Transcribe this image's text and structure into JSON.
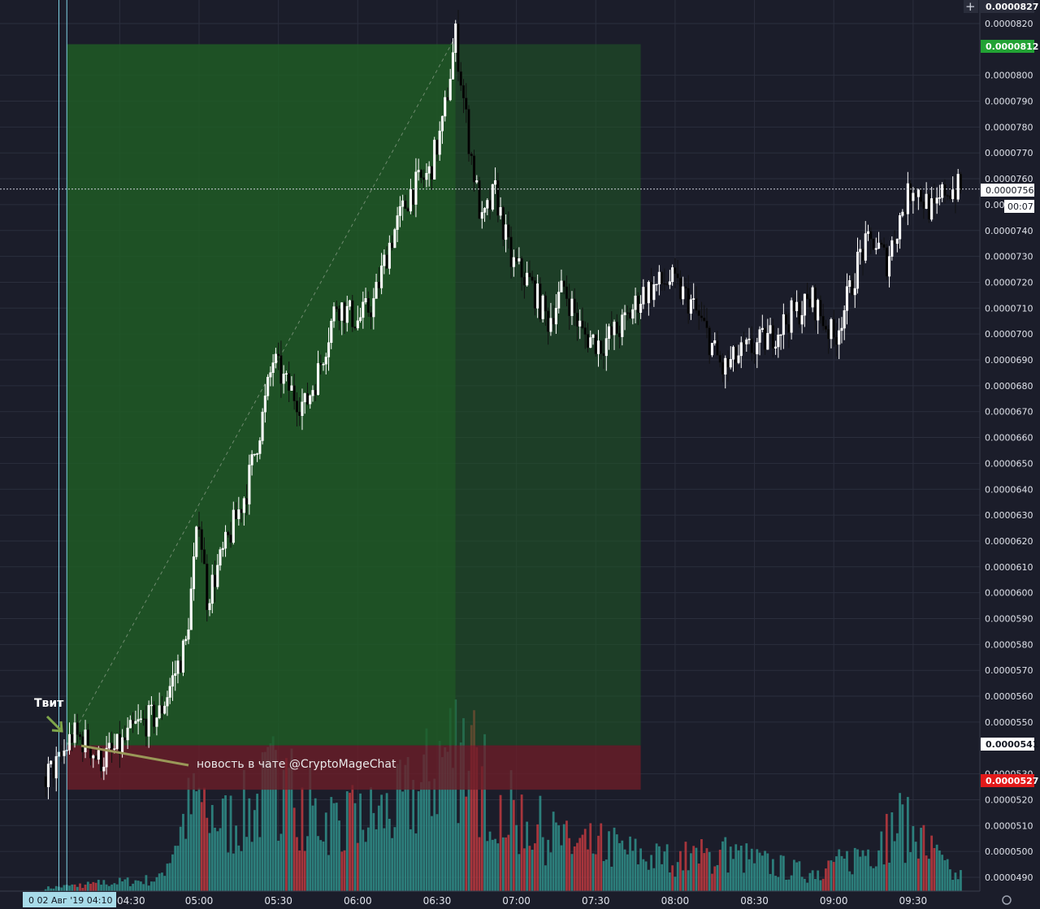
{
  "colors": {
    "background": "#1b1d2a",
    "grid": "#2b2e3d",
    "candle_up": "#ffffff",
    "candle_down": "#000000",
    "volume_up": "#2f8f8a",
    "volume_down": "#c0393f",
    "profit_zone": "#1f5a24",
    "loss_zone": "#6b1e28",
    "target_badge": "#22a234",
    "stop_badge": "#e21a1a",
    "entry_badge": "#ffffff",
    "marker_line": "#7fd3e6",
    "note_arrow": "#7fa64a",
    "note_line": "#9a9858"
  },
  "chart_data": {
    "type": "candlestick",
    "title": "",
    "xlabel": "",
    "ylabel": "",
    "ylim": [
      4.87e-05,
      8.28e-05
    ],
    "grid": true,
    "x_range": [
      "04:02",
      "09:48"
    ],
    "x_ticks": [
      "04:30",
      "05:00",
      "05:30",
      "06:00",
      "06:30",
      "07:00",
      "07:30",
      "08:00",
      "08:30",
      "09:00",
      "09:30"
    ],
    "y_ticks": [
      "0.0000490",
      "0.0000500",
      "0.0000510",
      "0.0000520",
      "0.0000530",
      "0.0000550",
      "0.0000560",
      "0.0000570",
      "0.0000580",
      "0.0000590",
      "0.0000600",
      "0.0000610",
      "0.0000620",
      "0.0000630",
      "0.0000640",
      "0.0000650",
      "0.0000660",
      "0.0000670",
      "0.0000680",
      "0.0000690",
      "0.0000700",
      "0.0000710",
      "0.0000720",
      "0.0000730",
      "0.0000740",
      "0.0000750",
      "0.0000760",
      "0.0000770",
      "0.0000780",
      "0.0000790",
      "0.0000800",
      "0.0000820"
    ],
    "price_path": [
      {
        "t": "04:02",
        "p": 5.29e-05
      },
      {
        "t": "04:07",
        "p": 5.34e-05
      },
      {
        "t": "04:12",
        "p": 5.45e-05
      },
      {
        "t": "04:18",
        "p": 5.42e-05
      },
      {
        "t": "04:22",
        "p": 5.35e-05
      },
      {
        "t": "04:30",
        "p": 5.4e-05
      },
      {
        "t": "04:36",
        "p": 5.48e-05
      },
      {
        "t": "04:45",
        "p": 5.53e-05
      },
      {
        "t": "04:55",
        "p": 5.8e-05
      },
      {
        "t": "05:00",
        "p": 6.3e-05
      },
      {
        "t": "05:03",
        "p": 5.98e-05
      },
      {
        "t": "05:08",
        "p": 6.12e-05
      },
      {
        "t": "05:18",
        "p": 6.4e-05
      },
      {
        "t": "05:24",
        "p": 6.68e-05
      },
      {
        "t": "05:28",
        "p": 6.9e-05
      },
      {
        "t": "05:33",
        "p": 6.8e-05
      },
      {
        "t": "05:40",
        "p": 6.72e-05
      },
      {
        "t": "05:45",
        "p": 6.85e-05
      },
      {
        "t": "05:52",
        "p": 7.12e-05
      },
      {
        "t": "06:00",
        "p": 7.05e-05
      },
      {
        "t": "06:06",
        "p": 7.12e-05
      },
      {
        "t": "06:12",
        "p": 7.35e-05
      },
      {
        "t": "06:20",
        "p": 7.55e-05
      },
      {
        "t": "06:27",
        "p": 7.62e-05
      },
      {
        "t": "06:32",
        "p": 7.8e-05
      },
      {
        "t": "06:37",
        "p": 8.15e-05
      },
      {
        "t": "06:42",
        "p": 7.75e-05
      },
      {
        "t": "06:47",
        "p": 7.42e-05
      },
      {
        "t": "06:52",
        "p": 7.55e-05
      },
      {
        "t": "06:58",
        "p": 7.28e-05
      },
      {
        "t": "07:05",
        "p": 7.2e-05
      },
      {
        "t": "07:12",
        "p": 7.05e-05
      },
      {
        "t": "07:18",
        "p": 7.18e-05
      },
      {
        "t": "07:25",
        "p": 7e-05
      },
      {
        "t": "07:32",
        "p": 6.96e-05
      },
      {
        "t": "07:40",
        "p": 7.03e-05
      },
      {
        "t": "07:48",
        "p": 7.16e-05
      },
      {
        "t": "07:58",
        "p": 7.21e-05
      },
      {
        "t": "08:06",
        "p": 7.12e-05
      },
      {
        "t": "08:12",
        "p": 7e-05
      },
      {
        "t": "08:18",
        "p": 6.86e-05
      },
      {
        "t": "08:25",
        "p": 6.92e-05
      },
      {
        "t": "08:35",
        "p": 6.98e-05
      },
      {
        "t": "08:45",
        "p": 7.08e-05
      },
      {
        "t": "08:52",
        "p": 7.13e-05
      },
      {
        "t": "09:00",
        "p": 6.98e-05
      },
      {
        "t": "09:06",
        "p": 7.16e-05
      },
      {
        "t": "09:10",
        "p": 7.31e-05
      },
      {
        "t": "09:15",
        "p": 7.36e-05
      },
      {
        "t": "09:20",
        "p": 7.28e-05
      },
      {
        "t": "09:26",
        "p": 7.48e-05
      },
      {
        "t": "09:30",
        "p": 7.58e-05
      },
      {
        "t": "09:34",
        "p": 7.52e-05
      },
      {
        "t": "09:38",
        "p": 7.46e-05
      },
      {
        "t": "09:42",
        "p": 7.56e-05
      }
    ],
    "volume_path": [
      {
        "t": "04:02",
        "v": 0.02
      },
      {
        "t": "04:20",
        "v": 0.05
      },
      {
        "t": "04:30",
        "v": 0.06
      },
      {
        "t": "04:45",
        "v": 0.08
      },
      {
        "t": "04:55",
        "v": 0.5
      },
      {
        "t": "05:00",
        "v": 0.6
      },
      {
        "t": "05:10",
        "v": 0.45
      },
      {
        "t": "05:20",
        "v": 0.55
      },
      {
        "t": "05:30",
        "v": 0.75
      },
      {
        "t": "05:45",
        "v": 0.5
      },
      {
        "t": "06:00",
        "v": 0.45
      },
      {
        "t": "06:15",
        "v": 0.55
      },
      {
        "t": "06:25",
        "v": 0.7
      },
      {
        "t": "06:37",
        "v": 1.0
      },
      {
        "t": "06:45",
        "v": 0.8
      },
      {
        "t": "06:55",
        "v": 0.55
      },
      {
        "t": "07:05",
        "v": 0.45
      },
      {
        "t": "07:20",
        "v": 0.3
      },
      {
        "t": "07:35",
        "v": 0.3
      },
      {
        "t": "07:50",
        "v": 0.22
      },
      {
        "t": "08:05",
        "v": 0.22
      },
      {
        "t": "08:20",
        "v": 0.25
      },
      {
        "t": "08:35",
        "v": 0.18
      },
      {
        "t": "08:50",
        "v": 0.12
      },
      {
        "t": "09:05",
        "v": 0.2
      },
      {
        "t": "09:15",
        "v": 0.3
      },
      {
        "t": "09:25",
        "v": 0.45
      },
      {
        "t": "09:35",
        "v": 0.3
      },
      {
        "t": "09:45",
        "v": 0.1
      }
    ],
    "position": {
      "start_time": "04:10",
      "end_time": "07:47",
      "peak_time": "06:37",
      "entry": 5.41e-05,
      "target": 8.12e-05,
      "stop": 5.27e-05
    },
    "current_price": 7.56e-05,
    "axis_top_price": 8.27e-05,
    "markers": [
      {
        "name": "tweet",
        "time": "04:07"
      },
      {
        "name": "chat-news",
        "time": "04:10"
      }
    ]
  },
  "annotations": {
    "tweet_label": "Твит",
    "chat_news_label": "новость в чате @CryptoMageChat"
  },
  "price_badges": {
    "top": "0.0000827",
    "target": "0.0000812",
    "current": "0.0000756",
    "countdown": "00:07",
    "entry": "0.0000541",
    "stop": "0.0000527"
  },
  "time_axis": {
    "hover_label": "0  02 Авг '19   04:10",
    "truncated_tick": "04:30"
  },
  "icons": {
    "crosshair": "plus-icon",
    "settings": "gear-icon"
  }
}
